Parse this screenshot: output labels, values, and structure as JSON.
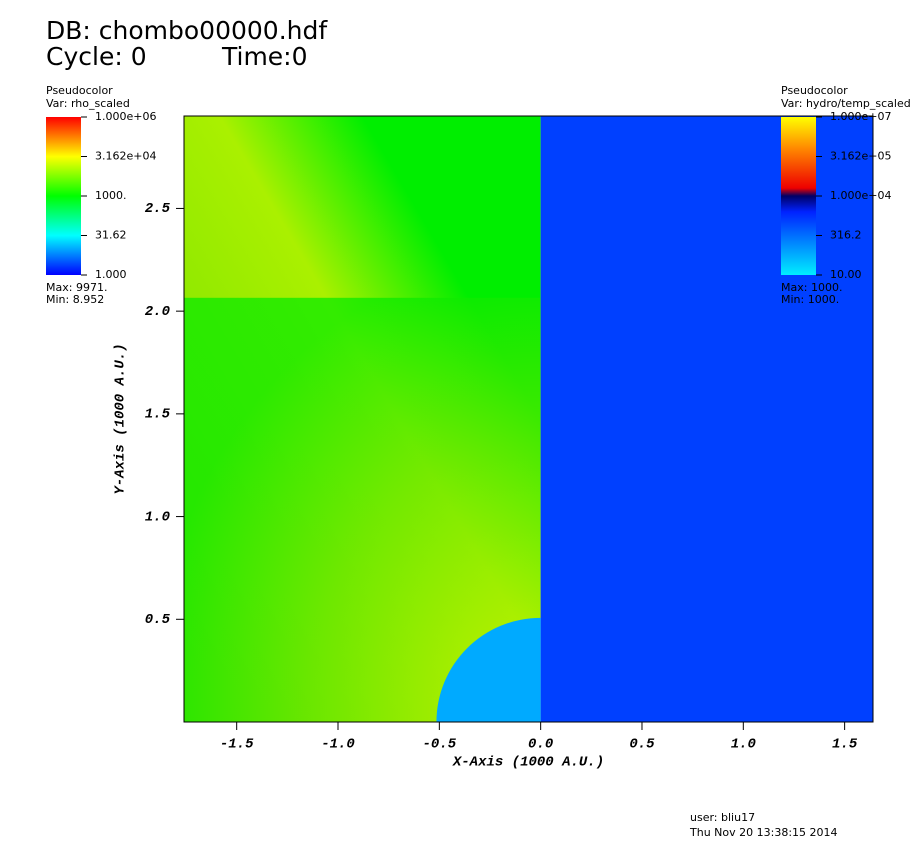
{
  "chart_data": {
    "type": "pseudocolor",
    "title": "DB: chombo00000.hdf",
    "cycle": "Cycle: 0",
    "time": "Time:0",
    "x_label": "X-Axis (1000 A.U.)",
    "y_label": "Y-Axis (1000 A.U.)",
    "xlim": [
      -1.76,
      1.64
    ],
    "ylim": [
      0,
      2.95
    ],
    "xticks": [
      -1.5,
      {
        "value": -1,
        "label": "-1.0"
      },
      -0.5,
      {
        "value": 0,
        "label": "0.0"
      },
      0.5,
      {
        "value": 1,
        "label": "1.0"
      },
      1.5
    ],
    "yticks": [
      0.5,
      {
        "value": 1,
        "label": "1.0"
      },
      1.5,
      {
        "value": 2,
        "label": "2.0"
      },
      2.5
    ],
    "legends": [
      {
        "plot": "Pseudocolor",
        "var": "Var: rho_scaled",
        "scale": "log",
        "clim": [
          1,
          1000000
        ],
        "ticks": [
          {
            "value": 1000000,
            "label": "1.000e+06"
          },
          {
            "value": 31620,
            "label": "3.162e+04"
          },
          {
            "value": 1000,
            "label": "1000."
          },
          31.62,
          {
            "value": 1,
            "label": "1.000"
          }
        ],
        "max": "Max: 9971.",
        "min": "Min: 8.952"
      },
      {
        "plot": "Pseudocolor",
        "var": "Var: hydro/temp_scaled",
        "scale": "log",
        "clim": [
          10,
          10000000
        ],
        "ticks": [
          {
            "value": 10000000,
            "label": "1.000e+07"
          },
          {
            "value": 316200,
            "label": "3.162e+05"
          },
          {
            "value": 10000,
            "label": "1.000e+04"
          },
          316.2,
          {
            "value": 10,
            "label": "10.00"
          }
        ],
        "max": "Max: 1000.",
        "min": "Min: 1000."
      }
    ],
    "user": "user: bliu17",
    "date": "Thu Nov 20 13:38:15 2014"
  }
}
